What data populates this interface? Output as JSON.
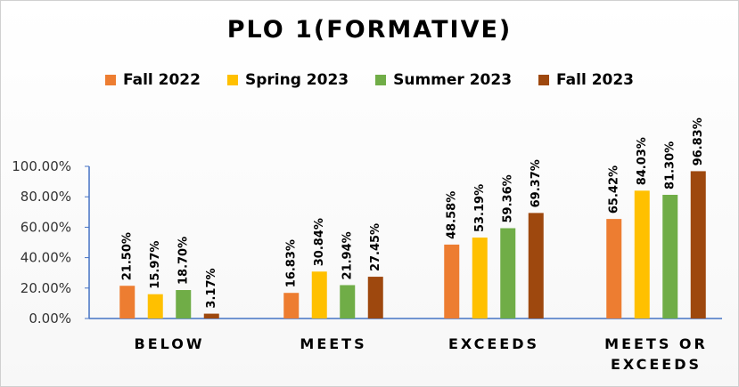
{
  "chart_data": {
    "type": "bar",
    "title": "PLO 1(FORMATIVE)",
    "categories": [
      [
        "BELOW"
      ],
      [
        "MEETS"
      ],
      [
        "EXCEEDS"
      ],
      [
        "MEETS OR",
        "EXCEEDS"
      ]
    ],
    "series": [
      {
        "name": "Fall 2022",
        "color": "#ed7d31",
        "values": [
          21.5,
          16.83,
          48.58,
          65.42
        ],
        "labels": [
          "21.50%",
          "16.83%",
          "48.58%",
          "65.42%"
        ]
      },
      {
        "name": "Spring 2023",
        "color": "#ffc000",
        "values": [
          15.97,
          30.84,
          53.19,
          84.03
        ],
        "labels": [
          "15.97%",
          "30.84%",
          "53.19%",
          "84.03%"
        ]
      },
      {
        "name": "Summer 2023",
        "color": "#70ad47",
        "values": [
          18.7,
          21.94,
          59.36,
          81.3
        ],
        "labels": [
          "18.70%",
          "21.94%",
          "59.36%",
          "81.30%"
        ]
      },
      {
        "name": "Fall 2023",
        "color": "#9e480e",
        "values": [
          3.17,
          27.45,
          69.37,
          96.83
        ],
        "labels": [
          "3.17%",
          "27.45%",
          "69.37%",
          "96.83%"
        ]
      }
    ],
    "yticks": [
      {
        "value": 0,
        "label": "0.00%"
      },
      {
        "value": 20,
        "label": "20.00%"
      },
      {
        "value": 40,
        "label": "40.00%"
      },
      {
        "value": 60,
        "label": "60.00%"
      },
      {
        "value": 80,
        "label": "80.00%"
      },
      {
        "value": 100,
        "label": "100.00%"
      }
    ],
    "ylim": [
      0,
      100
    ],
    "grid": false,
    "legend_position": "top"
  }
}
